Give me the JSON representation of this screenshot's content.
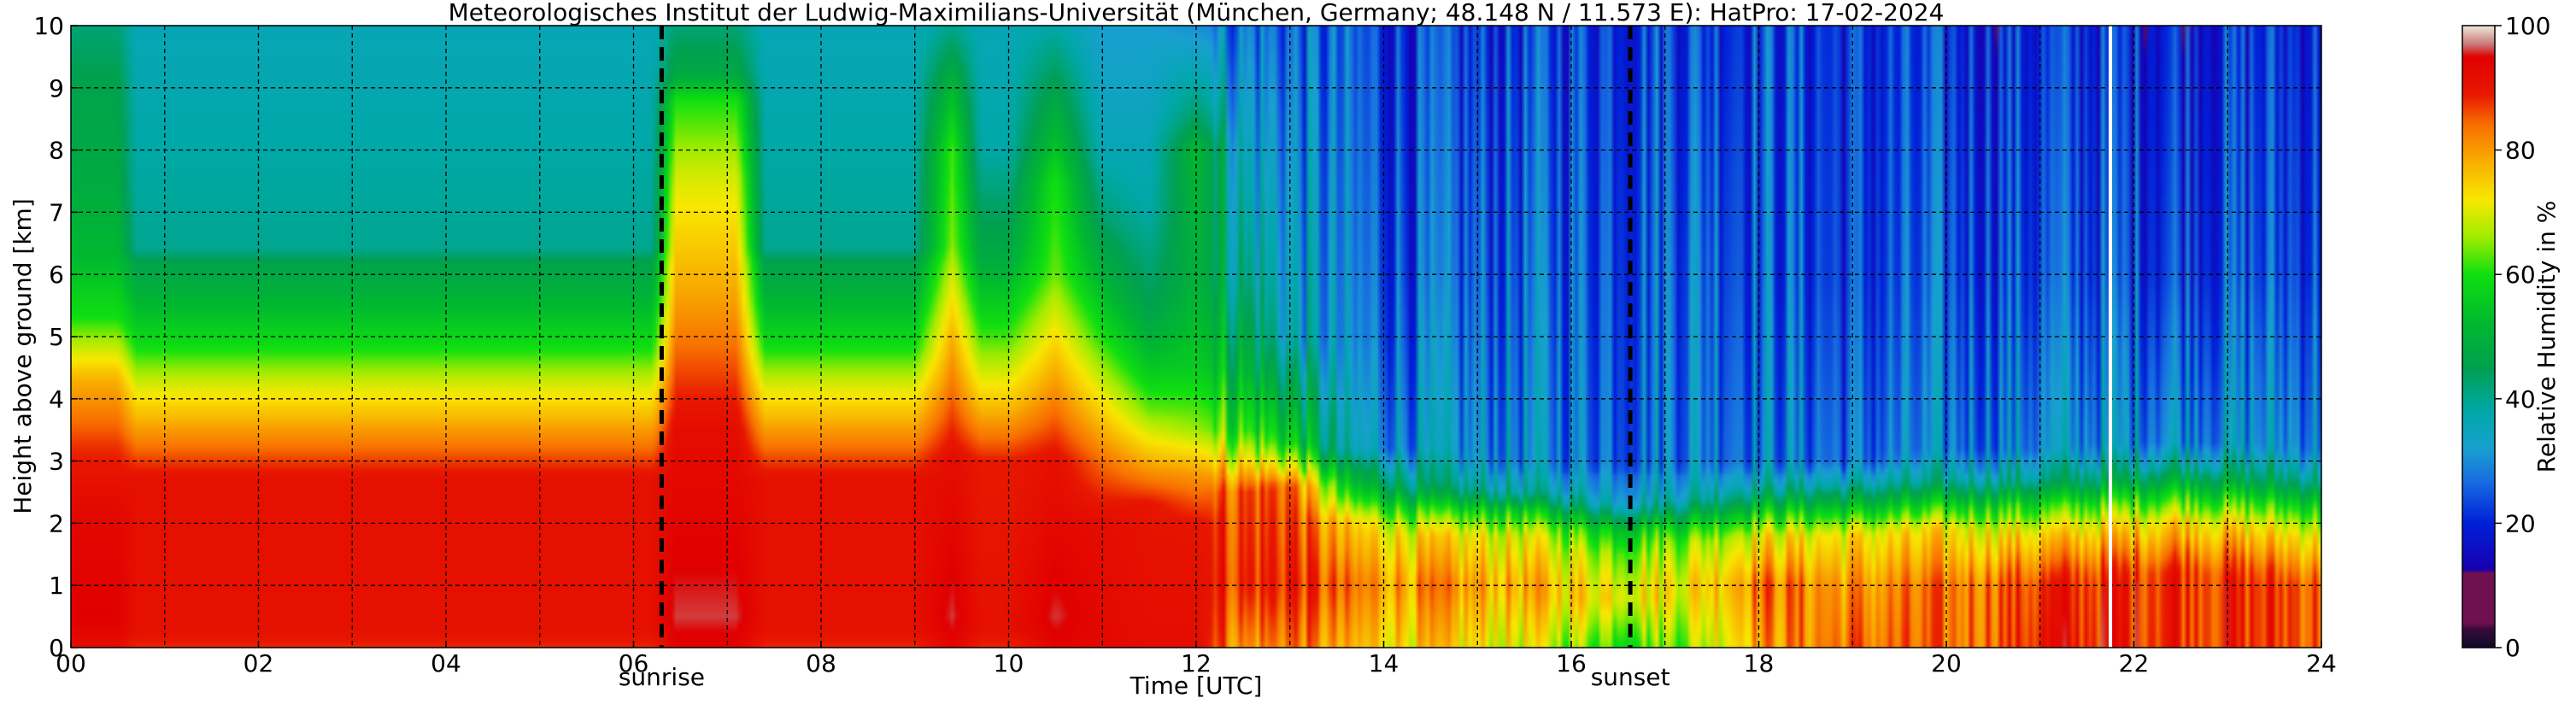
{
  "chart_data": {
    "type": "heatmap",
    "title": "Meteorologisches Institut der Ludwig-Maximilians-Universität (München, Germany; 48.148 N / 11.573 E):    HatPro: 17-02-2024",
    "xlabel": "Time [UTC]",
    "ylabel": "Height above ground [km]",
    "xlim": [
      0,
      24
    ],
    "ylim": [
      0,
      10
    ],
    "x_ticks": [
      0,
      2,
      4,
      6,
      8,
      10,
      12,
      14,
      16,
      18,
      20,
      22,
      24
    ],
    "x_tick_labels": [
      "00",
      "02",
      "04",
      "06",
      "08",
      "10",
      "12",
      "14",
      "16",
      "18",
      "20",
      "22",
      "24"
    ],
    "y_ticks": [
      0,
      1,
      2,
      3,
      4,
      5,
      6,
      7,
      8,
      9,
      10
    ],
    "y_tick_labels": [
      "0",
      "1",
      "2",
      "3",
      "4",
      "5",
      "6",
      "7",
      "8",
      "9",
      "10"
    ],
    "grid": true,
    "colorbar": {
      "label": "Relative Humidity in %",
      "range": [
        0,
        100
      ],
      "ticks": [
        0,
        20,
        40,
        60,
        80,
        100
      ],
      "tick_labels": [
        "0",
        "20",
        "40",
        "60",
        "80",
        "100"
      ],
      "stops": [
        {
          "v": 0,
          "c": "#0b0b2a"
        },
        {
          "v": 3,
          "c": "#3a0a3a"
        },
        {
          "v": 4,
          "c": "#701050"
        },
        {
          "v": 12,
          "c": "#701050"
        },
        {
          "v": 12.5,
          "c": "#1800b0"
        },
        {
          "v": 20,
          "c": "#0020d8"
        },
        {
          "v": 27,
          "c": "#1870e0"
        },
        {
          "v": 32,
          "c": "#18a0d0"
        },
        {
          "v": 38,
          "c": "#00a8a8"
        },
        {
          "v": 45,
          "c": "#00a050"
        },
        {
          "v": 52,
          "c": "#00b830"
        },
        {
          "v": 60,
          "c": "#10e010"
        },
        {
          "v": 66,
          "c": "#a0ec00"
        },
        {
          "v": 72,
          "c": "#f8e800"
        },
        {
          "v": 78,
          "c": "#f8b000"
        },
        {
          "v": 84,
          "c": "#f87000"
        },
        {
          "v": 89,
          "c": "#e81800"
        },
        {
          "v": 95,
          "c": "#e00000"
        },
        {
          "v": 97,
          "c": "#c87878"
        },
        {
          "v": 100,
          "c": "#f0ead8"
        }
      ]
    },
    "annotations": [
      {
        "label": "sunrise",
        "x": 6.3
      },
      {
        "label": "sunset",
        "x": 16.63
      }
    ],
    "missing_data_time": 21.75,
    "description_profiles": [
      {
        "t": 0.0,
        "rh": [
          [
            0,
            92
          ],
          [
            0.5,
            95
          ],
          [
            2.2,
            93
          ],
          [
            3.2,
            88
          ],
          [
            4.3,
            78
          ],
          [
            5.3,
            60
          ],
          [
            6.3,
            52
          ],
          [
            7.5,
            48
          ],
          [
            9.0,
            46
          ],
          [
            10,
            42
          ]
        ]
      },
      {
        "t": 0.5,
        "rh": [
          [
            0,
            92
          ],
          [
            0.5,
            95
          ],
          [
            2.2,
            93
          ],
          [
            3.2,
            88
          ],
          [
            4.3,
            78
          ],
          [
            5.3,
            60
          ],
          [
            6.3,
            52
          ],
          [
            7.5,
            48
          ],
          [
            9.0,
            46
          ],
          [
            10,
            42
          ]
        ]
      },
      {
        "t": 0.7,
        "rh": [
          [
            0,
            88
          ],
          [
            0.3,
            91
          ],
          [
            2.7,
            91
          ],
          [
            3.5,
            80
          ],
          [
            4.2,
            70
          ],
          [
            4.8,
            60
          ],
          [
            5.7,
            50
          ],
          [
            6.2,
            46
          ],
          [
            6.4,
            40
          ],
          [
            8,
            38
          ],
          [
            10,
            36
          ]
        ]
      },
      {
        "t": 6.2,
        "rh": [
          [
            0,
            88
          ],
          [
            0.3,
            91
          ],
          [
            2.7,
            91
          ],
          [
            3.5,
            80
          ],
          [
            4.2,
            70
          ],
          [
            4.8,
            60
          ],
          [
            5.7,
            50
          ],
          [
            6.2,
            46
          ],
          [
            6.4,
            40
          ],
          [
            8,
            38
          ],
          [
            10,
            36
          ]
        ]
      },
      {
        "t": 6.45,
        "rh": [
          [
            0,
            94
          ],
          [
            0.5,
            96
          ],
          [
            3.5,
            92
          ],
          [
            5.5,
            80
          ],
          [
            7.5,
            70
          ],
          [
            8.8,
            60
          ],
          [
            9.2,
            48
          ],
          [
            10,
            42
          ]
        ]
      },
      {
        "t": 7.1,
        "rh": [
          [
            0,
            94
          ],
          [
            0.5,
            96
          ],
          [
            3.5,
            92
          ],
          [
            5.5,
            80
          ],
          [
            7.5,
            70
          ],
          [
            8.8,
            60
          ],
          [
            9.2,
            48
          ],
          [
            10,
            42
          ]
        ]
      },
      {
        "t": 7.4,
        "rh": [
          [
            0,
            88
          ],
          [
            0.3,
            91
          ],
          [
            2.7,
            91
          ],
          [
            3.5,
            80
          ],
          [
            4.2,
            70
          ],
          [
            4.8,
            60
          ],
          [
            5.7,
            50
          ],
          [
            6.2,
            46
          ],
          [
            6.4,
            40
          ],
          [
            8,
            38
          ],
          [
            10,
            36
          ]
        ]
      },
      {
        "t": 9.0,
        "rh": [
          [
            0,
            88
          ],
          [
            0.3,
            91
          ],
          [
            2.7,
            91
          ],
          [
            3.5,
            80
          ],
          [
            4.2,
            70
          ],
          [
            4.8,
            60
          ],
          [
            5.7,
            50
          ],
          [
            6.2,
            46
          ],
          [
            6.4,
            40
          ],
          [
            8,
            38
          ],
          [
            10,
            36
          ]
        ]
      },
      {
        "t": 9.4,
        "rh": [
          [
            0,
            94
          ],
          [
            0.5,
            96
          ],
          [
            3.0,
            92
          ],
          [
            5.0,
            78
          ],
          [
            6.5,
            65
          ],
          [
            8.0,
            62
          ],
          [
            9.0,
            52
          ],
          [
            10,
            40
          ]
        ]
      },
      {
        "t": 9.7,
        "rh": [
          [
            0,
            88
          ],
          [
            0.3,
            91
          ],
          [
            3.0,
            89
          ],
          [
            4.0,
            75
          ],
          [
            5.0,
            62
          ],
          [
            6.3,
            48
          ],
          [
            8,
            38
          ],
          [
            10,
            36
          ]
        ]
      },
      {
        "t": 10.0,
        "rh": [
          [
            0,
            88
          ],
          [
            0.3,
            91
          ],
          [
            3.0,
            89
          ],
          [
            4.0,
            75
          ],
          [
            5.0,
            62
          ],
          [
            6.3,
            48
          ],
          [
            8,
            38
          ],
          [
            10,
            36
          ]
        ]
      },
      {
        "t": 10.5,
        "rh": [
          [
            0,
            94
          ],
          [
            0.5,
            96
          ],
          [
            3.0,
            91
          ],
          [
            4.5,
            78
          ],
          [
            6.0,
            64
          ],
          [
            7.5,
            60
          ],
          [
            8.3,
            52
          ],
          [
            10,
            38
          ]
        ]
      },
      {
        "t": 11.0,
        "rh": [
          [
            0,
            93
          ],
          [
            2.0,
            92
          ],
          [
            3.0,
            84
          ],
          [
            4.0,
            72
          ],
          [
            5.0,
            60
          ],
          [
            6.0,
            50
          ],
          [
            7.0,
            42
          ],
          [
            8,
            36
          ],
          [
            10,
            32
          ]
        ]
      },
      {
        "t": 11.5,
        "rh": [
          [
            0,
            92
          ],
          [
            2.3,
            90
          ],
          [
            3.0,
            78
          ],
          [
            3.8,
            64
          ],
          [
            4.5,
            55
          ],
          [
            5.5,
            45
          ],
          [
            7.0,
            38
          ],
          [
            10,
            32
          ]
        ]
      },
      {
        "t": 12.0,
        "rh": [
          [
            0,
            92
          ],
          [
            2.0,
            90
          ],
          [
            2.8,
            80
          ],
          [
            3.5,
            66
          ],
          [
            4.5,
            56
          ],
          [
            6.0,
            50
          ],
          [
            8.0,
            52
          ],
          [
            8.5,
            44
          ],
          [
            10,
            30
          ]
        ]
      },
      {
        "t": 12.5,
        "rh": [
          [
            0,
            80
          ],
          [
            1.0,
            88
          ],
          [
            2.5,
            86
          ],
          [
            3.0,
            72
          ],
          [
            3.5,
            60
          ],
          [
            4.5,
            50
          ],
          [
            6,
            40
          ],
          [
            10,
            28
          ]
        ]
      },
      {
        "t": 13.0,
        "rh": [
          [
            0,
            84
          ],
          [
            1.0,
            90
          ],
          [
            2.6,
            86
          ],
          [
            2.9,
            72
          ],
          [
            3.3,
            58
          ],
          [
            4.0,
            48
          ],
          [
            5,
            36
          ],
          [
            10,
            26
          ]
        ]
      },
      {
        "t": 13.6,
        "rh": [
          [
            0,
            76
          ],
          [
            1.0,
            82
          ],
          [
            2.0,
            74
          ],
          [
            2.4,
            60
          ],
          [
            2.8,
            48
          ],
          [
            3.2,
            34
          ],
          [
            5,
            28
          ],
          [
            10,
            24
          ]
        ]
      },
      {
        "t": 14.5,
        "rh": [
          [
            0,
            74
          ],
          [
            1.0,
            80
          ],
          [
            1.8,
            72
          ],
          [
            2.2,
            58
          ],
          [
            2.6,
            40
          ],
          [
            3.2,
            30
          ],
          [
            6,
            24
          ],
          [
            10,
            21
          ]
        ]
      },
      {
        "t": 15.5,
        "rh": [
          [
            0,
            70
          ],
          [
            1.0,
            78
          ],
          [
            1.8,
            70
          ],
          [
            2.2,
            56
          ],
          [
            2.5,
            38
          ],
          [
            3.0,
            30
          ],
          [
            6,
            26
          ],
          [
            10,
            22
          ]
        ]
      },
      {
        "t": 16.5,
        "rh": [
          [
            0,
            62
          ],
          [
            0.8,
            74
          ],
          [
            1.5,
            66
          ],
          [
            1.9,
            56
          ],
          [
            2.3,
            36
          ],
          [
            3.0,
            28
          ],
          [
            6,
            26
          ],
          [
            10,
            24
          ]
        ]
      },
      {
        "t": 17.3,
        "rh": [
          [
            0,
            66
          ],
          [
            1.0,
            74
          ],
          [
            1.7,
            66
          ],
          [
            2.0,
            56
          ],
          [
            2.4,
            38
          ],
          [
            3.0,
            30
          ],
          [
            6,
            28
          ],
          [
            10,
            24
          ]
        ]
      },
      {
        "t": 18.0,
        "rh": [
          [
            0,
            80
          ],
          [
            1.0,
            84
          ],
          [
            1.8,
            72
          ],
          [
            2.2,
            56
          ],
          [
            2.6,
            38
          ],
          [
            3.0,
            30
          ],
          [
            6,
            26
          ],
          [
            10,
            24
          ]
        ]
      },
      {
        "t": 19.0,
        "rh": [
          [
            0,
            84
          ],
          [
            1.0,
            80
          ],
          [
            1.8,
            72
          ],
          [
            2.2,
            56
          ],
          [
            2.6,
            38
          ],
          [
            3.0,
            26
          ],
          [
            6,
            22
          ],
          [
            10,
            21
          ]
        ]
      },
      {
        "t": 20.0,
        "rh": [
          [
            0,
            82
          ],
          [
            1.0,
            82
          ],
          [
            1.9,
            72
          ],
          [
            2.3,
            56
          ],
          [
            2.7,
            38
          ],
          [
            3.2,
            28
          ],
          [
            6,
            24
          ],
          [
            10,
            21
          ]
        ]
      },
      {
        "t": 21.0,
        "rh": [
          [
            0,
            90
          ],
          [
            1.0,
            88
          ],
          [
            1.8,
            74
          ],
          [
            2.3,
            58
          ],
          [
            2.7,
            40
          ],
          [
            3.2,
            30
          ],
          [
            6,
            24
          ],
          [
            10,
            21
          ]
        ]
      },
      {
        "t": 22.5,
        "rh": [
          [
            0,
            90
          ],
          [
            1.2,
            90
          ],
          [
            2.0,
            76
          ],
          [
            2.5,
            58
          ],
          [
            2.9,
            42
          ],
          [
            3.3,
            32
          ],
          [
            6,
            24
          ],
          [
            10,
            21
          ]
        ]
      },
      {
        "t": 24.0,
        "rh": [
          [
            0,
            86
          ],
          [
            1.0,
            86
          ],
          [
            1.8,
            72
          ],
          [
            2.3,
            56
          ],
          [
            2.7,
            40
          ],
          [
            3.2,
            30
          ],
          [
            6,
            24
          ],
          [
            10,
            21
          ]
        ]
      }
    ]
  }
}
